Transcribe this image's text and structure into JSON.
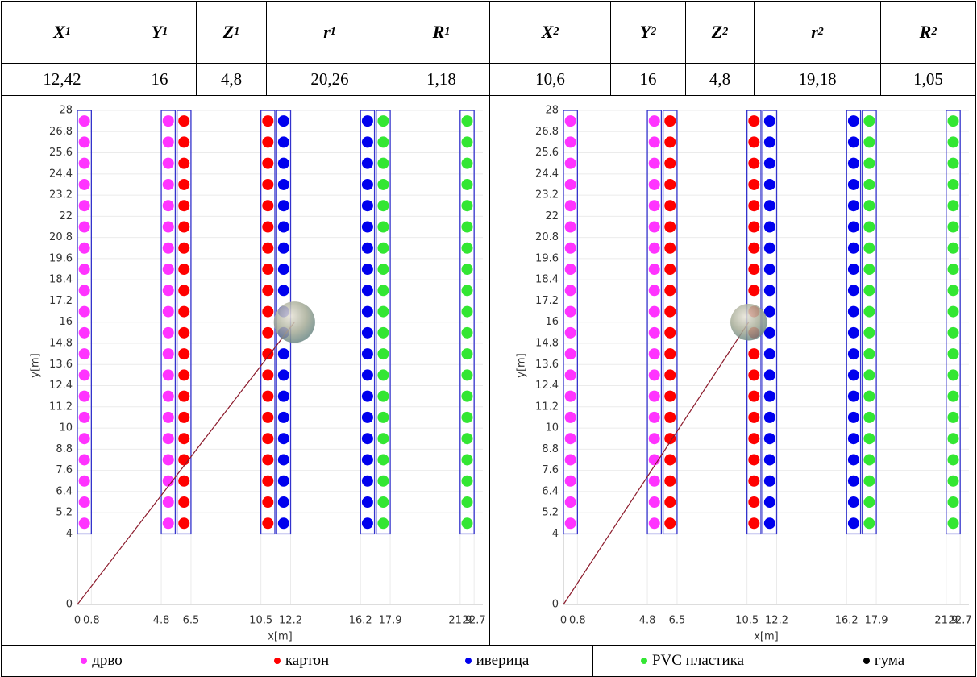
{
  "table": {
    "header": [
      [
        "X",
        "1"
      ],
      [
        "Y",
        "1"
      ],
      [
        "Z",
        "1"
      ],
      [
        "r",
        "1"
      ],
      [
        "R",
        "1"
      ],
      [
        "X",
        "2"
      ],
      [
        "Y",
        "2"
      ],
      [
        "Z",
        "2"
      ],
      [
        "r",
        "2"
      ],
      [
        "R",
        "2"
      ]
    ],
    "values": [
      "12,42",
      "16",
      "4,8",
      "20,26",
      "1,18",
      "10,6",
      "16",
      "4,8",
      "19,18",
      "1,05"
    ]
  },
  "legend": [
    {
      "label": "дрво",
      "color": "#ff33ff"
    },
    {
      "label": "картон",
      "color": "#ff0000"
    },
    {
      "label": "иверица",
      "color": "#0000ee"
    },
    {
      "label": "PVC пластика",
      "color": "#33e633"
    },
    {
      "label": "гума",
      "color": "#000000"
    }
  ],
  "chart_data": [
    {
      "type": "scatter",
      "xlabel": "x[m]",
      "ylabel": "y[m]",
      "xlim": [
        0,
        23.2
      ],
      "ylim": [
        0,
        28
      ],
      "xticks": [
        0,
        0.8,
        4.8,
        6.5,
        10.5,
        12.2,
        16.2,
        17.9,
        21.9,
        22.7
      ],
      "yticks": [
        0,
        4,
        5.2,
        6.4,
        7.6,
        8.8,
        10,
        11.2,
        12.4,
        13.6,
        14.8,
        16,
        17.2,
        18.4,
        19.6,
        20.8,
        22,
        23.2,
        24.4,
        25.6,
        26.8,
        28
      ],
      "grid": true,
      "y": [
        4.6,
        5.8,
        7,
        8.2,
        9.4,
        10.6,
        11.8,
        13,
        14.2,
        15.4,
        16.6,
        17.8,
        19,
        20.2,
        21.4,
        22.6,
        23.8,
        25,
        26.2,
        27.4
      ],
      "series": [
        {
          "color": "#ff33ff",
          "x": 0.4
        },
        {
          "color": "#ff33ff",
          "x": 5.2
        },
        {
          "color": "#ff0000",
          "x": 6.1
        },
        {
          "color": "#ff0000",
          "x": 10.9
        },
        {
          "color": "#0000ee",
          "x": 11.8
        },
        {
          "color": "#0000ee",
          "x": 16.6
        },
        {
          "color": "#33e633",
          "x": 17.5
        },
        {
          "color": "#33e633",
          "x": 22.3
        }
      ],
      "sphere": {
        "x": 12.42,
        "y": 16,
        "r": 1.18
      }
    },
    {
      "type": "scatter",
      "xlabel": "x[m]",
      "ylabel": "y[m]",
      "xlim": [
        0,
        23.2
      ],
      "ylim": [
        0,
        28
      ],
      "xticks": [
        0,
        0.8,
        4.8,
        6.5,
        10.5,
        12.2,
        16.2,
        17.9,
        21.9,
        22.7
      ],
      "yticks": [
        0,
        4,
        5.2,
        6.4,
        7.6,
        8.8,
        10,
        11.2,
        12.4,
        13.6,
        14.8,
        16,
        17.2,
        18.4,
        19.6,
        20.8,
        22,
        23.2,
        24.4,
        25.6,
        26.8,
        28
      ],
      "grid": true,
      "y": [
        4.6,
        5.8,
        7,
        8.2,
        9.4,
        10.6,
        11.8,
        13,
        14.2,
        15.4,
        16.6,
        17.8,
        19,
        20.2,
        21.4,
        22.6,
        23.8,
        25,
        26.2,
        27.4
      ],
      "series": [
        {
          "color": "#ff33ff",
          "x": 0.4
        },
        {
          "color": "#ff33ff",
          "x": 5.2
        },
        {
          "color": "#ff0000",
          "x": 6.1
        },
        {
          "color": "#ff0000",
          "x": 10.9
        },
        {
          "color": "#0000ee",
          "x": 11.8
        },
        {
          "color": "#0000ee",
          "x": 16.6
        },
        {
          "color": "#33e633",
          "x": 17.5
        },
        {
          "color": "#33e633",
          "x": 22.3
        }
      ],
      "sphere": {
        "x": 10.6,
        "y": 16,
        "r": 1.05
      }
    }
  ]
}
